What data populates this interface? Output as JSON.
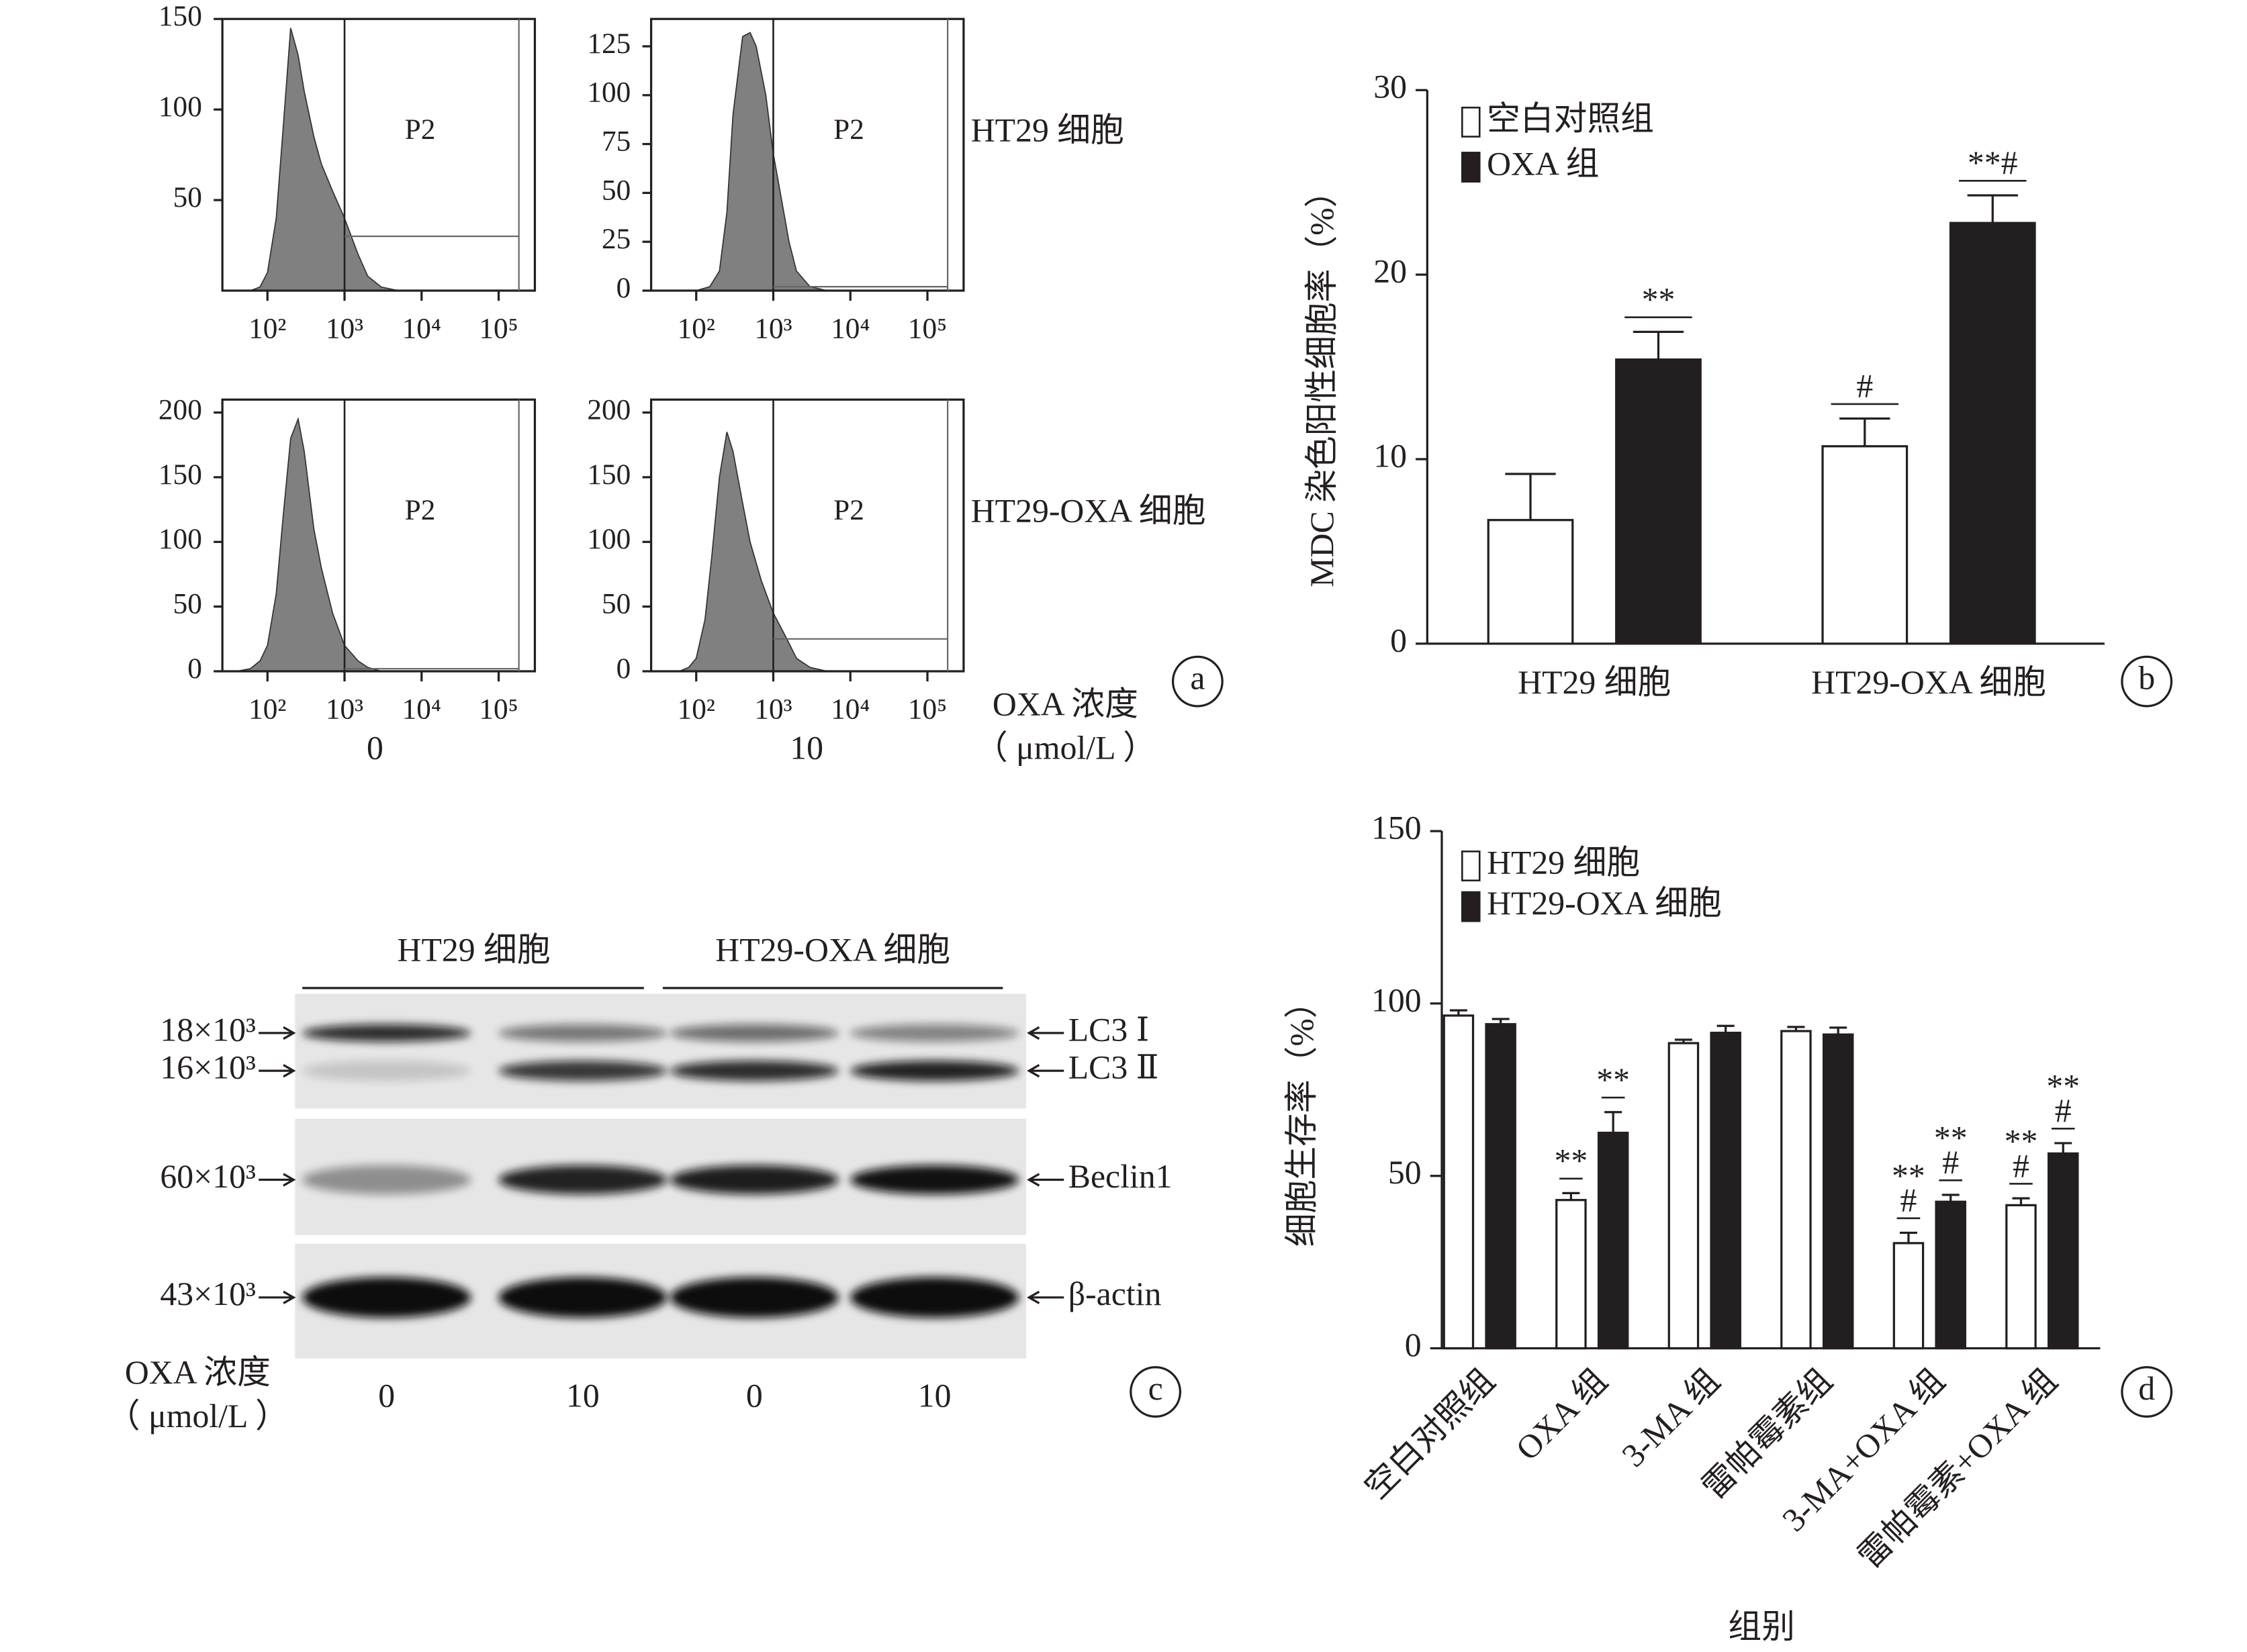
{
  "chart_data": [
    {
      "type": "flow-grid",
      "panel_label": "a",
      "row_labels": [
        "HT29 细胞",
        "HT29-OXA 细胞"
      ],
      "column_labels": [
        "0",
        "10"
      ],
      "column_title": [
        "OXA 浓度",
        "（ μmol/L ）"
      ],
      "charts": [
        {
          "type": "area",
          "log_x": true,
          "gate_label": "P2",
          "gate": {
            "x": [
              1000,
              183000
            ],
            "y": 30
          },
          "color": "#808080",
          "x": [
            40,
            60,
            80,
            100,
            130,
            160,
            200,
            250,
            300,
            400,
            500,
            700,
            1000,
            1500,
            2000,
            3000,
            5000
          ],
          "values": [
            0,
            0,
            2,
            10,
            40,
            90,
            145,
            130,
            110,
            85,
            70,
            55,
            40,
            20,
            8,
            2,
            0
          ],
          "xlim": [
            26,
            295000
          ],
          "xticks": [
            {
              "value": 100,
              "label": "10²"
            },
            {
              "value": 1000,
              "label": "10³"
            },
            {
              "value": 10000,
              "label": "10⁴"
            },
            {
              "value": 100000,
              "label": "10⁵"
            }
          ],
          "ylim": [
            0,
            150
          ],
          "yticks": [
            50,
            100,
            150
          ]
        },
        {
          "type": "area",
          "log_x": true,
          "gate_label": "P2",
          "gate": {
            "x": [
              1000,
              183000
            ],
            "y": 2
          },
          "color": "#808080",
          "x": [
            100,
            150,
            200,
            250,
            300,
            400,
            500,
            600,
            800,
            1000,
            1300,
            1600,
            2000,
            3000,
            5000
          ],
          "values": [
            0,
            2,
            10,
            40,
            90,
            130,
            132,
            125,
            100,
            70,
            45,
            25,
            10,
            2,
            0
          ],
          "xlim": [
            26,
            295000
          ],
          "xticks": [
            {
              "value": 100,
              "label": "10²"
            },
            {
              "value": 1000,
              "label": "10³"
            },
            {
              "value": 10000,
              "label": "10⁴"
            },
            {
              "value": 100000,
              "label": "10⁵"
            }
          ],
          "ylim": [
            0,
            139
          ],
          "yticks": [
            0,
            25,
            50,
            75,
            100,
            125
          ]
        },
        {
          "type": "area",
          "log_x": true,
          "gate_label": "P2",
          "gate": {
            "x": [
              1000,
              183000
            ],
            "y": 2
          },
          "color": "#808080",
          "x": [
            40,
            60,
            80,
            100,
            130,
            160,
            200,
            250,
            300,
            400,
            500,
            700,
            1000,
            1500,
            2000,
            3000
          ],
          "values": [
            0,
            2,
            8,
            20,
            60,
            120,
            180,
            195,
            170,
            110,
            80,
            45,
            20,
            8,
            3,
            0
          ],
          "xlim": [
            26,
            295000
          ],
          "xticks": [
            {
              "value": 100,
              "label": "10²"
            },
            {
              "value": 1000,
              "label": "10³"
            },
            {
              "value": 10000,
              "label": "10⁴"
            },
            {
              "value": 100000,
              "label": "10⁵"
            }
          ],
          "ylim": [
            0,
            210
          ],
          "yticks": [
            0,
            50,
            100,
            150,
            200
          ]
        },
        {
          "type": "area",
          "log_x": true,
          "gate_label": "P2",
          "gate": {
            "x": [
              1000,
              183000
            ],
            "y": 25
          },
          "color": "#808080",
          "x": [
            60,
            80,
            100,
            130,
            160,
            200,
            250,
            300,
            400,
            500,
            700,
            1000,
            1500,
            2000,
            3000,
            5000
          ],
          "values": [
            0,
            3,
            10,
            40,
            90,
            150,
            185,
            170,
            130,
            100,
            70,
            45,
            25,
            10,
            3,
            0
          ],
          "xlim": [
            26,
            295000
          ],
          "xticks": [
            {
              "value": 100,
              "label": "10²"
            },
            {
              "value": 1000,
              "label": "10³"
            },
            {
              "value": 10000,
              "label": "10⁴"
            },
            {
              "value": 100000,
              "label": "10⁵"
            }
          ],
          "ylim": [
            0,
            210
          ],
          "yticks": [
            0,
            50,
            100,
            150,
            200
          ]
        }
      ]
    },
    {
      "type": "bar",
      "panel_label": "b",
      "ylabel": "MDC 染色阳性细胞率（%）",
      "legend": "upper left",
      "categories": [
        "HT29 细胞",
        "HT29-OXA 细胞"
      ],
      "series": [
        {
          "name": "空白对照组",
          "color": "#ffffff",
          "values": [
            6.7,
            10.7
          ],
          "errors": [
            2.5,
            1.5
          ],
          "annotations": [
            null,
            [
              "#"
            ]
          ]
        },
        {
          "name": "OXA 组",
          "color": "#231f20",
          "values": [
            15.4,
            22.8
          ],
          "errors": [
            1.5,
            1.5
          ],
          "annotations": [
            [
              "**"
            ],
            [
              "**#"
            ]
          ]
        }
      ],
      "ylim": [
        0,
        30
      ],
      "yticks": [
        0,
        10,
        20,
        30
      ]
    },
    {
      "type": "blot",
      "panel_label": "c",
      "groups": [
        "HT29 细胞",
        "HT29-OXA 细胞"
      ],
      "lanes": [
        "0",
        "10",
        "0",
        "10"
      ],
      "lane_title": [
        "OXA 浓度",
        "（ μmol/L ）"
      ],
      "markers": [
        "18×10³",
        "16×10³",
        "60×10³",
        "43×10³"
      ],
      "bands": [
        "LC3 Ⅰ",
        "LC3 Ⅱ",
        "Beclin1",
        "β-actin"
      ]
    },
    {
      "type": "bar",
      "panel_label": "d",
      "ylabel": "细胞生存率（%）",
      "xlabel": "组别",
      "legend": "upper left",
      "categories": [
        "空白对照组",
        "OXA 组",
        "3-MA 组",
        "雷帕霉素组",
        "3-MA+OXA 组",
        "雷帕霉素+OXA 组"
      ],
      "series": [
        {
          "name": "HT29 细胞",
          "color": "#ffffff",
          "values": [
            96.5,
            43,
            88.5,
            92,
            30.5,
            41.5
          ],
          "errors": [
            1.5,
            2,
            1,
            1.2,
            3,
            2
          ],
          "annotations": [
            null,
            [
              "**"
            ],
            null,
            null,
            [
              "**",
              "#"
            ],
            [
              "**",
              "#"
            ]
          ]
        },
        {
          "name": "HT29-OXA 细胞",
          "color": "#231f20",
          "values": [
            94,
            62.5,
            91.5,
            91,
            42.5,
            56.5
          ],
          "errors": [
            1.5,
            6,
            2,
            2,
            2,
            3
          ],
          "annotations": [
            null,
            [
              "**"
            ],
            null,
            null,
            [
              "**",
              "#"
            ],
            [
              "**",
              "#"
            ]
          ]
        }
      ],
      "ylim": [
        0,
        150
      ],
      "yticks": [
        0,
        50,
        100,
        150
      ]
    }
  ]
}
